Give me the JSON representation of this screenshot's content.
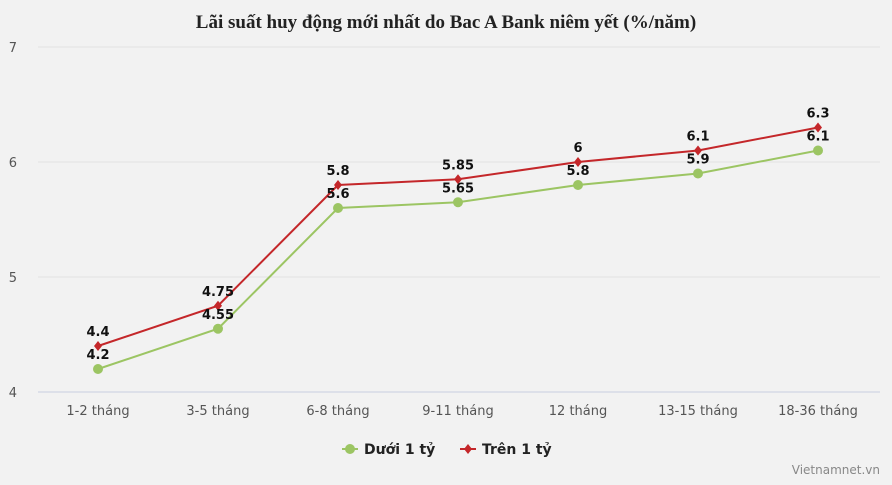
{
  "chart_data": {
    "type": "line",
    "title": "Lãi suất huy động mới nhất do Bac A Bank niêm yết (%/năm)",
    "categories": [
      "1-2 tháng",
      "3-5 tháng",
      "6-8 tháng",
      "9-11 tháng",
      "12 tháng",
      "13-15 tháng",
      "18-36 tháng"
    ],
    "series": [
      {
        "name": "Dưới 1 tỷ",
        "color": "#9cc563",
        "marker": "circle",
        "values": [
          4.2,
          4.55,
          5.6,
          5.65,
          5.8,
          5.9,
          6.1
        ],
        "labels": [
          "4.2",
          "4.55",
          "5.6",
          "5.65",
          "5.8",
          "5.9",
          "6.1"
        ]
      },
      {
        "name": "Trên 1 tỷ",
        "color": "#c4272a",
        "marker": "diamond",
        "values": [
          4.4,
          4.75,
          5.8,
          5.85,
          6,
          6.1,
          6.3
        ],
        "labels": [
          "4.4",
          "4.75",
          "5.8",
          "5.85",
          "6",
          "6.1",
          "6.3"
        ]
      }
    ],
    "ylim": [
      4,
      7
    ],
    "yticks": [
      "4",
      "5",
      "6",
      "7"
    ],
    "grid": true,
    "legend": "bottom-center",
    "xlabel": "",
    "ylabel": ""
  },
  "credit": "Vietnamnet.vn"
}
